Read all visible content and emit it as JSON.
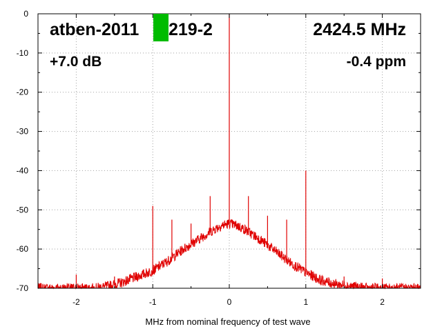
{
  "chart_data": {
    "type": "line",
    "title": "",
    "xlabel": "MHz from nominal frequency of test wave",
    "ylabel": "",
    "xlim": [
      -2.5,
      2.5
    ],
    "ylim": [
      -70,
      0
    ],
    "x_ticks": [
      -2,
      -1,
      0,
      1,
      2
    ],
    "y_ticks": [
      0,
      -10,
      -20,
      -30,
      -40,
      -50,
      -60,
      -70
    ],
    "x_tick_labels": [
      "-2",
      "-1",
      "0",
      "1",
      "2"
    ],
    "y_tick_labels": [
      "0",
      "-10",
      "-20",
      "-30",
      "-40",
      "-50",
      "-60",
      "-70"
    ],
    "grid": true,
    "series_color": "#e00000",
    "series": [
      {
        "name": "",
        "x": [
          -2.5,
          -1.75,
          -1.6,
          -1.4,
          -1.2,
          -1.0,
          -0.8,
          -0.6,
          -0.4,
          -0.2,
          -0.1,
          0.0,
          0.1,
          0.2,
          0.4,
          0.6,
          0.8,
          1.0,
          1.2,
          1.4,
          1.6,
          1.8,
          2.0,
          2.2,
          2.5
        ],
        "y": [
          -70,
          -70,
          -69.5,
          -68.5,
          -67,
          -65.5,
          -63,
          -60,
          -57.5,
          -55,
          -54,
          -53.5,
          -54,
          -55,
          -57.5,
          -60.5,
          -63.5,
          -66,
          -68,
          -69,
          -69.5,
          -70,
          -70,
          -70,
          -70
        ]
      }
    ],
    "spurs": [
      {
        "x": -2.0,
        "y": -66.5
      },
      {
        "x": -1.5,
        "y": -67
      },
      {
        "x": -1.0,
        "y": -49
      },
      {
        "x": -0.75,
        "y": -52.5
      },
      {
        "x": -0.5,
        "y": -53.5
      },
      {
        "x": -0.25,
        "y": -46.5
      },
      {
        "x": 0.0,
        "y": 0
      },
      {
        "x": 0.25,
        "y": -46.5
      },
      {
        "x": 0.5,
        "y": -51.5
      },
      {
        "x": 0.75,
        "y": -52.5
      },
      {
        "x": 1.0,
        "y": -40
      },
      {
        "x": 1.5,
        "y": -67
      },
      {
        "x": 2.0,
        "y": -67.5
      }
    ]
  },
  "overlay": {
    "device": "atben-2011",
    "device_suffix": "219-2",
    "frequency": "2424.5 MHz",
    "gain": "+7.0 dB",
    "ppm": "-0.4 ppm",
    "marker_color": "#00bb00"
  }
}
